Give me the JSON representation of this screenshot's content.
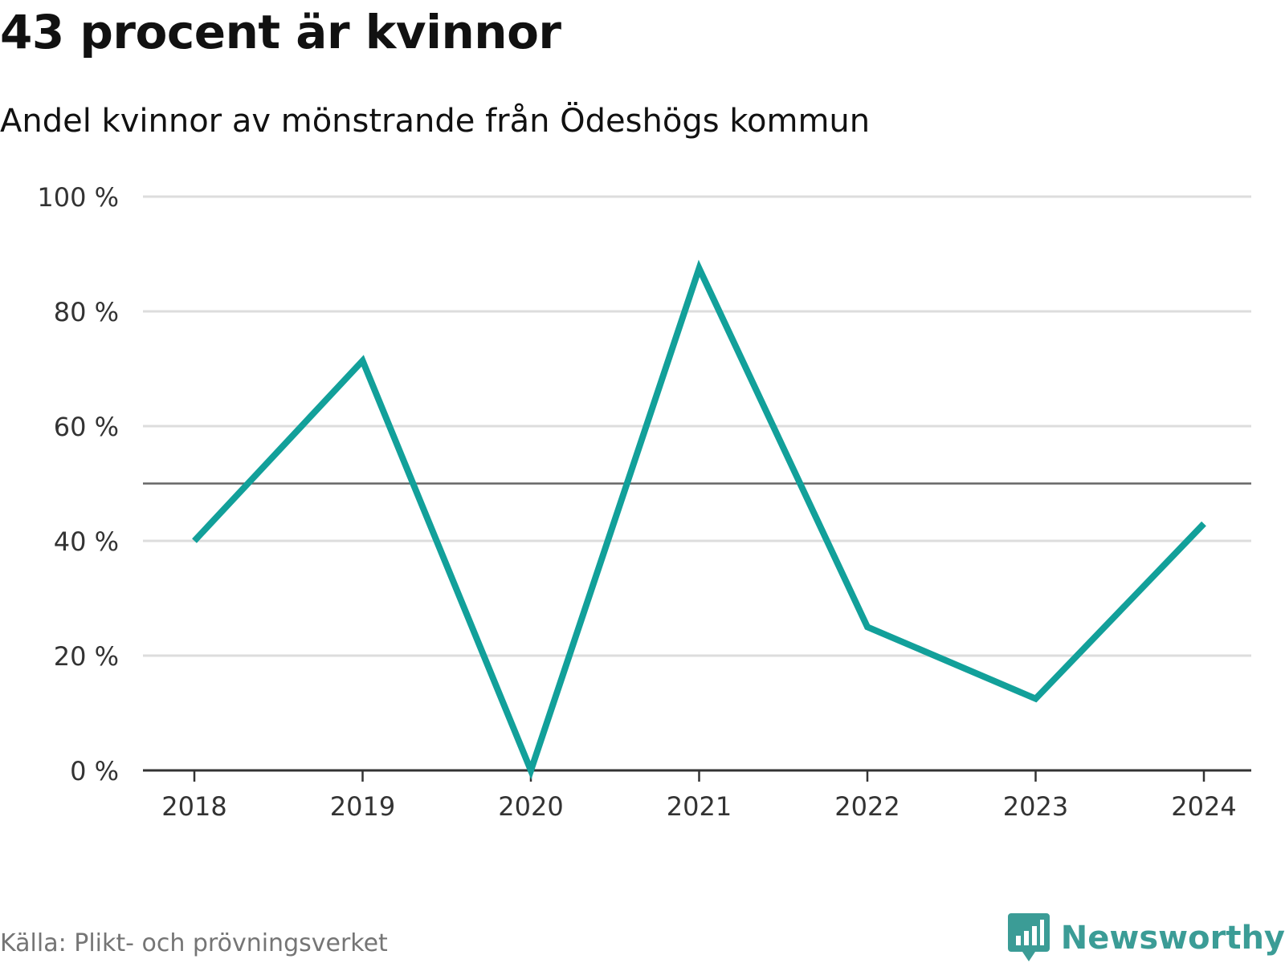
{
  "header": {
    "title": "43 procent är kvinnor",
    "subtitle": "Andel kvinnor av mönstrande från Ödeshögs kommun"
  },
  "footer": {
    "source": "Källa: Plikt- och prövningsverket",
    "brand": "Newsworthy",
    "brand_icon": "bar-chart-speech-bubble-icon"
  },
  "colors": {
    "line": "#12a09a",
    "grid": "#dddddd",
    "reference": "#666666",
    "axis": "#333333",
    "brand": "#3b9c96"
  },
  "chart_data": {
    "type": "line",
    "title": "43 procent är kvinnor",
    "subtitle": "Andel kvinnor av mönstrande från Ödeshögs kommun",
    "xlabel": "",
    "ylabel": "",
    "categories": [
      "2018",
      "2019",
      "2020",
      "2021",
      "2022",
      "2023",
      "2024"
    ],
    "series": [
      {
        "name": "Andel kvinnor",
        "values": [
          40,
          71.4,
          0,
          87.5,
          25,
          12.5,
          43
        ]
      }
    ],
    "ylim": [
      0,
      100
    ],
    "yticks": [
      0,
      20,
      40,
      60,
      80,
      100
    ],
    "ytick_labels": [
      "0 %",
      "20 %",
      "40 %",
      "60 %",
      "80 %",
      "100 %"
    ],
    "reference_line": 50,
    "grid": true,
    "legend": "none"
  }
}
